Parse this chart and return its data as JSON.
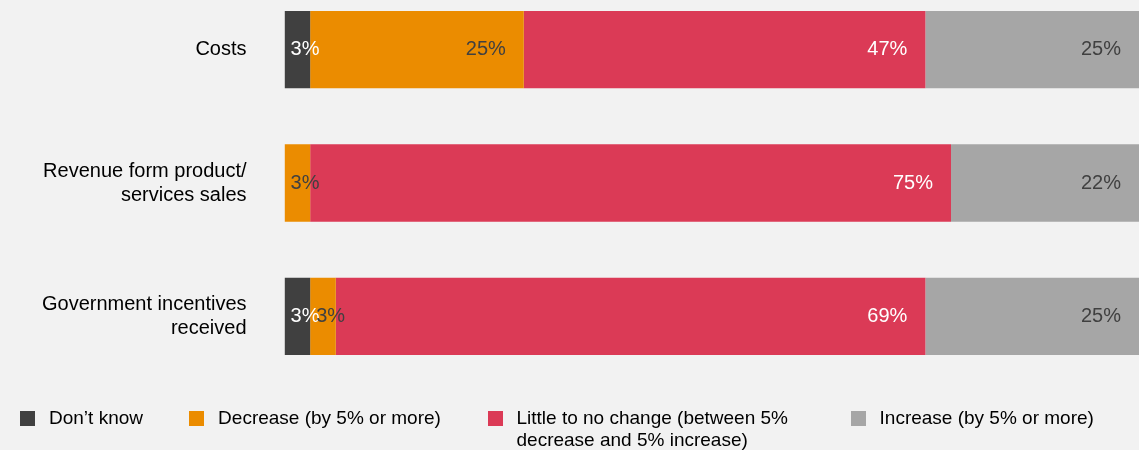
{
  "chart_data": {
    "type": "bar",
    "orientation": "horizontal",
    "stacked": true,
    "categories": [
      "Costs",
      "Revenue form product/ services sales",
      "Government incentives received"
    ],
    "series": [
      {
        "name": "Don’t know",
        "color": "#404040",
        "values": [
          3,
          null,
          3
        ],
        "value_labels": [
          "3%",
          null,
          "3%"
        ]
      },
      {
        "name": "Decrease (by 5% or more)",
        "color": "#eb8c00",
        "values": [
          25,
          3,
          3
        ],
        "value_labels": [
          "25%",
          "3%",
          "3%"
        ]
      },
      {
        "name": "Little to no change (between 5% decrease and 5% increase)",
        "color": "#db3a56",
        "values": [
          47,
          75,
          69
        ],
        "value_labels": [
          "47%",
          "75%",
          "69%"
        ]
      },
      {
        "name": "Increase (by 5% or more)",
        "color": "#a6a6a6",
        "values": [
          25,
          22,
          25
        ],
        "value_labels": [
          "25%",
          "22%",
          "25%"
        ]
      }
    ],
    "xlim": [
      0,
      100
    ],
    "tick_labels": "y",
    "grid": false,
    "legend": "bottom"
  }
}
